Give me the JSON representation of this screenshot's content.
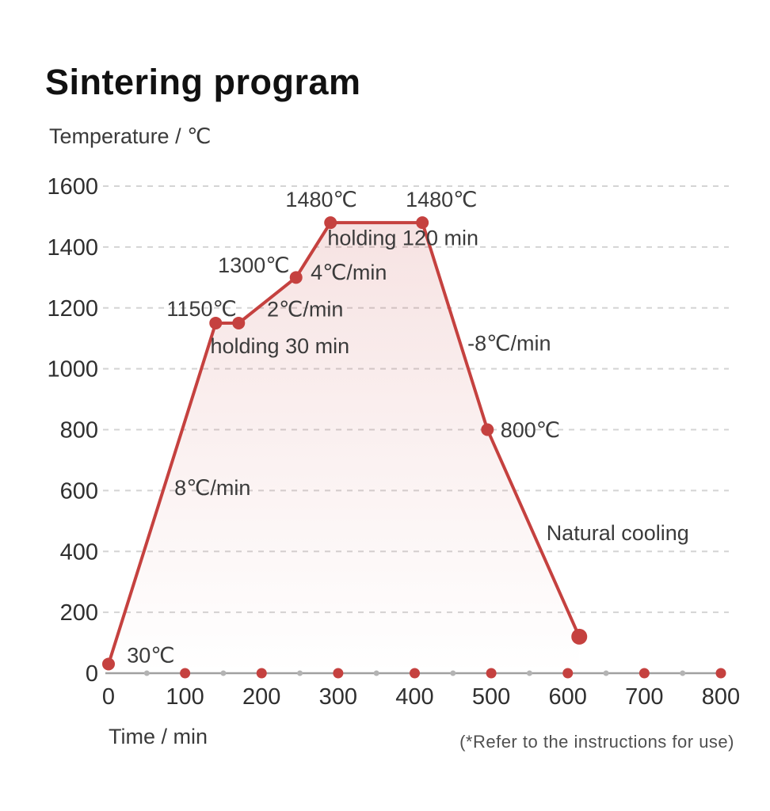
{
  "title": "Sintering program",
  "footnote": "(*Refer to the instructions for use)",
  "colors": {
    "line": "#c5413f",
    "point": "#c5413f",
    "axis_line": "#a0a0a0",
    "grid": "#d4d4d4",
    "minor_tick_dot": "#b3b3b3",
    "major_tick_dot": "#c5413f",
    "annotation_text": "#3b3b3b",
    "tick_text": "#2f2f2f",
    "fill_top": "rgba(197,65,63,0.16)",
    "fill_bottom": "rgba(197,65,63,0)"
  },
  "chart_data": {
    "type": "line",
    "title": "Sintering program",
    "xlabel": "Time / min",
    "ylabel": "Temperature / ℃",
    "xlim": [
      0,
      800
    ],
    "ylim": [
      0,
      1600
    ],
    "grid": "dashed-horizontal",
    "legend": "none",
    "x_major_ticks": [
      0,
      100,
      200,
      300,
      400,
      500,
      600,
      700,
      800
    ],
    "x_minor_ticks": [
      50,
      150,
      250,
      350,
      450,
      550,
      650,
      750
    ],
    "y_ticks": [
      0,
      200,
      400,
      600,
      800,
      1000,
      1200,
      1400,
      1600
    ],
    "series": [
      {
        "name": "sintering-profile",
        "points": [
          {
            "t": 0,
            "temp": 30
          },
          {
            "t": 140,
            "temp": 1150
          },
          {
            "t": 170,
            "temp": 1150
          },
          {
            "t": 245,
            "temp": 1300
          },
          {
            "t": 290,
            "temp": 1480
          },
          {
            "t": 410,
            "temp": 1480
          },
          {
            "t": 495,
            "temp": 800
          },
          {
            "t": 615,
            "temp": 120
          }
        ]
      }
    ],
    "annotations": [
      {
        "id": "start-temp",
        "text": "30℃",
        "t": 24,
        "temp": 60,
        "anchor": "start"
      },
      {
        "id": "ramp-8c",
        "text": "8℃/min",
        "t": 86,
        "temp": 611,
        "anchor": "start"
      },
      {
        "id": "temp-1150",
        "text": "1150℃",
        "t": 76,
        "temp": 1199,
        "anchor": "start"
      },
      {
        "id": "holding-30",
        "text": "holding 30 min",
        "t": 133,
        "temp": 1076,
        "anchor": "start"
      },
      {
        "id": "ramp-2c",
        "text": "2℃/min",
        "t": 207,
        "temp": 1197,
        "anchor": "start"
      },
      {
        "id": "temp-1300",
        "text": "1300℃",
        "t": 143,
        "temp": 1342,
        "anchor": "start"
      },
      {
        "id": "ramp-4c",
        "text": "4℃/min",
        "t": 264,
        "temp": 1318,
        "anchor": "start"
      },
      {
        "id": "temp-1480-a",
        "text": "1480℃",
        "t": 278,
        "temp": 1558,
        "anchor": "middle"
      },
      {
        "id": "temp-1480-b",
        "text": "1480℃",
        "t": 435,
        "temp": 1558,
        "anchor": "middle"
      },
      {
        "id": "holding-120",
        "text": "holding 120 min",
        "t": 286,
        "temp": 1431,
        "anchor": "start"
      },
      {
        "id": "ramp-minus8c",
        "text": "-8℃/min",
        "t": 469,
        "temp": 1085,
        "anchor": "start"
      },
      {
        "id": "temp-800",
        "text": "800℃",
        "t": 512,
        "temp": 800,
        "anchor": "start"
      },
      {
        "id": "natural-cooling",
        "text": "Natural cooling",
        "t": 572,
        "temp": 463,
        "anchor": "start"
      }
    ]
  }
}
